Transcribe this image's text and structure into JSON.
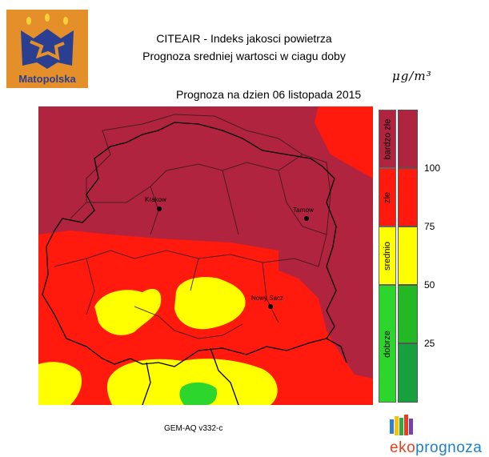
{
  "logo": {
    "text": "Matopolska"
  },
  "header": {
    "title_line1": "CITEAIR - Indeks jakosci powietrza",
    "title_line2": "Prognoza sredniej wartosci w ciagu doby",
    "date_line": "Prognoza na dzien  06 listopada 2015",
    "unit": "μg/m³"
  },
  "map": {
    "cities": [
      {
        "name": "Krakow"
      },
      {
        "name": "Tarnow"
      },
      {
        "name": "Nowy Sacz"
      }
    ]
  },
  "legend": {
    "categories": [
      {
        "label": "bardzo zle",
        "color": "#b0243f"
      },
      {
        "label": "zle",
        "color": "#ff1a0d"
      },
      {
        "label": "srednio",
        "color": "#ffff00"
      },
      {
        "label": "dobrze",
        "color": "#2dd62d"
      }
    ],
    "scale_colors": [
      "#b0243f",
      "#ff1a0d",
      "#ffff00",
      "#24b924",
      "#189f3e"
    ],
    "ticks": [
      "100",
      "75",
      "50",
      "25"
    ]
  },
  "footer": {
    "model": "GEM-AQ v332-c",
    "brand": "ekoprognoza",
    "brand_prefix": "eko",
    "brand_suffix": "prognoza"
  }
}
